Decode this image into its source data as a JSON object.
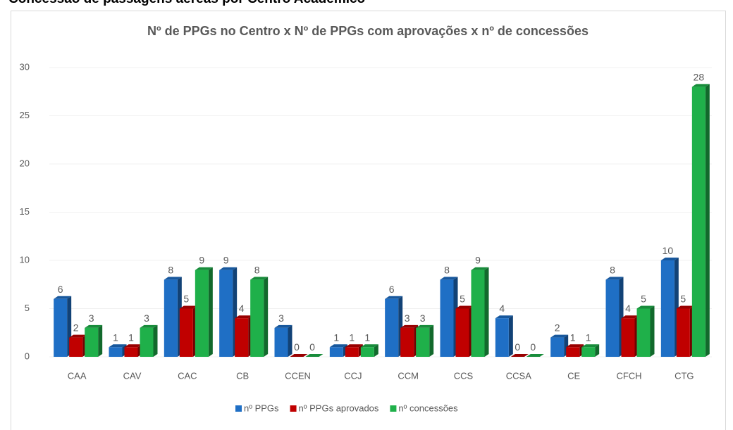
{
  "heading": "Concessão de passagens aéreas por Centro Acadêmico",
  "chart_data": {
    "type": "bar",
    "title": "Nº de PPGs no Centro x Nº de PPGs com aprovações x nº de concessões",
    "categories": [
      "CAA",
      "CAV",
      "CAC",
      "CB",
      "CCEN",
      "CCJ",
      "CCM",
      "CCS",
      "CCSA",
      "CE",
      "CFCH",
      "CTG"
    ],
    "series": [
      {
        "name": "nº PPGs",
        "color": "#1f6fc5",
        "values": [
          6,
          1,
          8,
          9,
          3,
          1,
          6,
          8,
          4,
          2,
          8,
          10
        ]
      },
      {
        "name": "nº PPGs aprovados",
        "color": "#c00000",
        "values": [
          2,
          1,
          5,
          4,
          0,
          1,
          3,
          5,
          0,
          1,
          4,
          5
        ]
      },
      {
        "name": "nº concessões",
        "color": "#1fb04a",
        "values": [
          3,
          3,
          9,
          8,
          0,
          1,
          3,
          9,
          0,
          1,
          5,
          28
        ]
      }
    ],
    "ylim": [
      0,
      30
    ],
    "yticks": [
      0,
      5,
      10,
      15,
      20,
      25,
      30
    ],
    "grid": true,
    "legend": "bottom"
  }
}
